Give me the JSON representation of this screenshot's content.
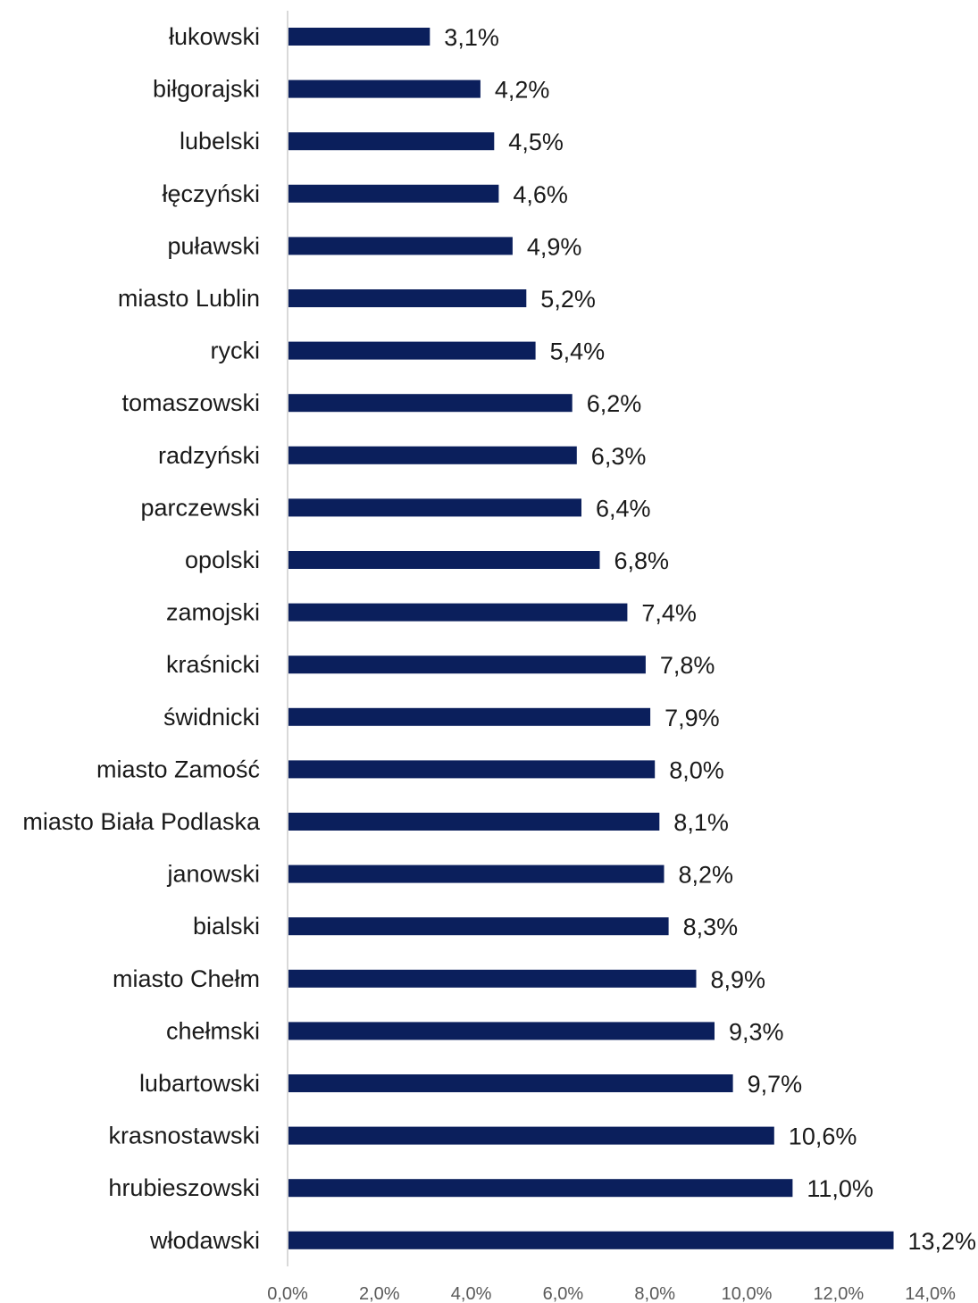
{
  "chart_data": {
    "type": "bar",
    "orientation": "horizontal",
    "title": "",
    "xlabel": "",
    "ylabel": "",
    "categories": [
      "łukowski",
      "biłgorajski",
      "lubelski",
      "łęczyński",
      "puławski",
      "miasto Lublin",
      "rycki",
      "tomaszowski",
      "radzyński",
      "parczewski",
      "opolski",
      "zamojski",
      "kraśnicki",
      "świdnicki",
      "miasto Zamość",
      "miasto Biała Podlaska",
      "janowski",
      "bialski",
      "miasto Chełm",
      "chełmski",
      "lubartowski",
      "krasnostawski",
      "hrubieszowski",
      "włodawski"
    ],
    "values": [
      3.1,
      4.2,
      4.5,
      4.6,
      4.9,
      5.2,
      5.4,
      6.2,
      6.3,
      6.4,
      6.8,
      7.4,
      7.8,
      7.9,
      8.0,
      8.1,
      8.2,
      8.3,
      8.9,
      9.3,
      9.7,
      10.6,
      11.0,
      13.2
    ],
    "value_labels": [
      "3,1%",
      "4,2%",
      "4,5%",
      "4,6%",
      "4,9%",
      "5,2%",
      "5,4%",
      "6,2%",
      "6,3%",
      "6,4%",
      "6,8%",
      "7,4%",
      "7,8%",
      "7,9%",
      "8,0%",
      "8,1%",
      "8,2%",
      "8,3%",
      "8,9%",
      "9,3%",
      "9,7%",
      "10,6%",
      "11,0%",
      "13,2%"
    ],
    "xlim": [
      0,
      14
    ],
    "x_ticks": [
      0,
      2,
      4,
      6,
      8,
      10,
      12,
      14
    ],
    "x_tick_labels": [
      "0,0%",
      "2,0%",
      "4,0%",
      "6,0%",
      "8,0%",
      "10,0%",
      "12,0%",
      "14,0%"
    ],
    "grid": false,
    "legend": "none",
    "colors": {
      "bar": "#0b1f5c",
      "axis": "#d9d9d9"
    }
  }
}
